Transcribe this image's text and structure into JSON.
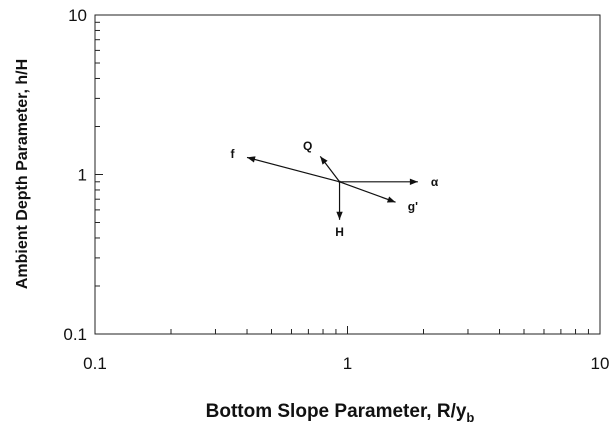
{
  "chart_data": {
    "type": "scatter",
    "xlabel": "Bottom Slope Parameter, R/y",
    "xlabel_subscript": "b",
    "ylabel": "Ambient Depth Parameter, h/H",
    "xscale": "log",
    "yscale": "log",
    "xlim": [
      0.1,
      10
    ],
    "ylim": [
      0.1,
      10
    ],
    "grid": false,
    "x_ticks": [
      {
        "value": 0.1,
        "label": "0.1"
      },
      {
        "value": 1,
        "label": "1"
      },
      {
        "value": 10,
        "label": "10"
      }
    ],
    "y_ticks": [
      {
        "value": 0.1,
        "label": "0.1"
      },
      {
        "value": 1,
        "label": "1"
      },
      {
        "value": 10,
        "label": "10"
      }
    ],
    "origin": {
      "x": 0.93,
      "y": 0.9
    },
    "vectors": [
      {
        "label": "f",
        "x": 0.4,
        "y": 1.28
      },
      {
        "label": "Q",
        "x": 0.78,
        "y": 1.3
      },
      {
        "label": "α",
        "x": 1.9,
        "y": 0.9
      },
      {
        "label": "g'",
        "x": 1.55,
        "y": 0.67
      },
      {
        "label": "H",
        "x": 0.93,
        "y": 0.52
      }
    ]
  }
}
